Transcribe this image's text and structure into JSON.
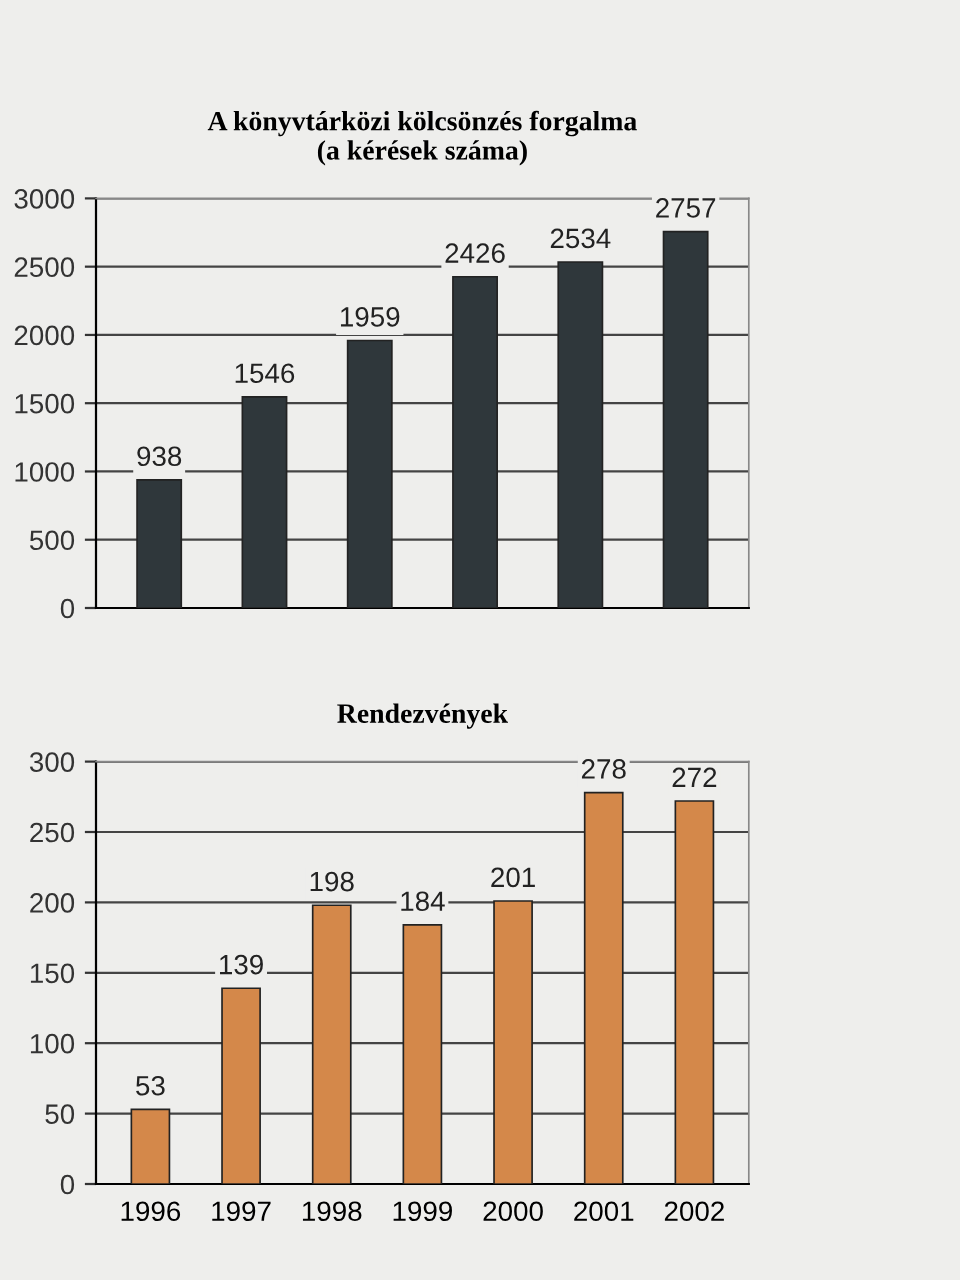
{
  "chart_data": [
    {
      "type": "bar",
      "title": "A könyvtárközi kölcsönzés forgalma\n(a kérések száma)",
      "categories": [
        null,
        null,
        null,
        null,
        null,
        null
      ],
      "values": [
        938,
        1546,
        1959,
        2426,
        2534,
        2757
      ],
      "color": "#2f373b",
      "ylim": [
        0,
        3000
      ],
      "yticks": [
        0,
        500,
        1000,
        1500,
        2000,
        2500,
        3000
      ],
      "grid": "y",
      "data_labels": true
    },
    {
      "type": "bar",
      "title": "Rendezvények",
      "categories": [
        "1996",
        "1997",
        "1998",
        "1999",
        "2000",
        "2001",
        "2002"
      ],
      "values": [
        53,
        139,
        198,
        184,
        201,
        278,
        272
      ],
      "color": "#d4884a",
      "ylim": [
        0,
        300
      ],
      "yticks": [
        0,
        50,
        100,
        150,
        200,
        250,
        300
      ],
      "grid": "y",
      "data_labels": true
    }
  ]
}
